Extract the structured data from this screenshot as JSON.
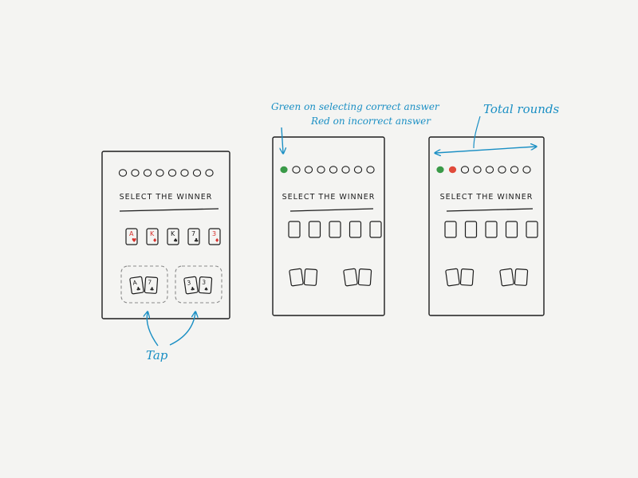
{
  "colors": {
    "ink": "#1c1c1c",
    "annotation": "#1a8fc4",
    "card_red": "#d8322e",
    "dot_correct": "#3a9a48",
    "dot_incorrect": "#e04a3a",
    "paper": "#f4f4f2"
  },
  "screens": [
    {
      "title": "SELECT THE WINNER",
      "round_results": [
        "empty",
        "empty",
        "empty",
        "empty",
        "empty",
        "empty",
        "empty",
        "empty"
      ],
      "board_cards": [
        {
          "rank": "A",
          "suit": "♥",
          "color": "red"
        },
        {
          "rank": "K",
          "suit": "♦",
          "color": "red"
        },
        {
          "rank": "K",
          "suit": "♠",
          "color": "black"
        },
        {
          "rank": "7",
          "suit": "♣",
          "color": "black"
        },
        {
          "rank": "3",
          "suit": "♦",
          "color": "red"
        }
      ],
      "hands": [
        [
          {
            "rank": "A",
            "suit": "♣"
          },
          {
            "rank": "7",
            "suit": "♣"
          }
        ],
        [
          {
            "rank": "3",
            "suit": "♣"
          },
          {
            "rank": "3",
            "suit": "♠"
          }
        ]
      ]
    },
    {
      "title": "SELECT THE WINNER",
      "round_results": [
        "correct",
        "empty",
        "empty",
        "empty",
        "empty",
        "empty",
        "empty",
        "empty"
      ]
    },
    {
      "title": "SELECT THE WINNER",
      "round_results": [
        "correct",
        "incorrect",
        "empty",
        "empty",
        "empty",
        "empty",
        "empty",
        "empty"
      ]
    }
  ],
  "annotations": {
    "tap": "Tap",
    "feedback_line1": "Green on selecting correct answer",
    "feedback_line2": "Red on incorrect answer",
    "total_rounds": "Total rounds"
  }
}
